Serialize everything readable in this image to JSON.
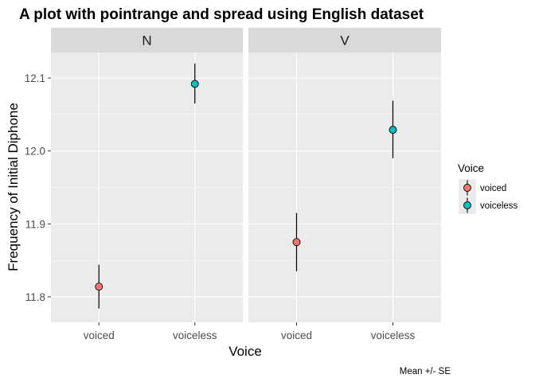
{
  "chart_data": {
    "type": "scatter",
    "title": "A plot with pointrange and spread using English dataset",
    "xlabel": "Voice",
    "ylabel": "Frequency of Initial Diphone",
    "caption": "Mean +/- SE",
    "categories": [
      "voiced",
      "voiceless"
    ],
    "ylim": [
      11.765,
      12.135
    ],
    "yticks": [
      11.8,
      11.9,
      12.0,
      12.1
    ],
    "ytick_labels": [
      "11.8",
      "11.9",
      "12.0",
      "12.1"
    ],
    "grid": true,
    "legend_position": "right",
    "legend": {
      "title": "Voice",
      "entries": [
        {
          "label": "voiced",
          "color": "#F8766D"
        },
        {
          "label": "voiceless",
          "color": "#00BFC4"
        }
      ]
    },
    "facets": [
      {
        "label": "N",
        "points": [
          {
            "category": "voiced",
            "mean": 11.814,
            "lower": 11.784,
            "upper": 11.844
          },
          {
            "category": "voiceless",
            "mean": 12.092,
            "lower": 12.065,
            "upper": 12.12
          }
        ]
      },
      {
        "label": "V",
        "points": [
          {
            "category": "voiced",
            "mean": 11.875,
            "lower": 11.835,
            "upper": 11.915
          },
          {
            "category": "voiceless",
            "mean": 12.029,
            "lower": 11.99,
            "upper": 12.069
          }
        ]
      }
    ],
    "colors": {
      "panel_background": "#EBEBEB",
      "strip_background": "#D9D9D9",
      "grid": "#FFFFFF",
      "voiced": "#F8766D",
      "voiceless": "#00BFC4"
    }
  }
}
